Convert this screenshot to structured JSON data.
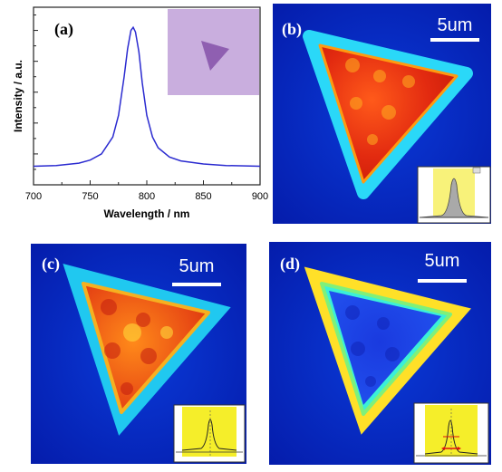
{
  "panel_labels": {
    "a": "(a)",
    "b": "(b)",
    "c": "(c)",
    "d": "(d)"
  },
  "scale_bar_label": "5um",
  "chart_data": {
    "type": "line",
    "title": "",
    "xlabel": "Wavelength / nm",
    "ylabel": "Intensity / a.u.",
    "xlim": [
      700,
      900
    ],
    "x_ticks": [
      700,
      750,
      800,
      850,
      900
    ],
    "ylim": [
      0,
      1.15
    ],
    "y_tick_labels": false,
    "grid": false,
    "legend": "none",
    "series": [
      {
        "color": "#2b2bd0",
        "x": [
          700,
          720,
          740,
          750,
          760,
          770,
          775,
          780,
          783,
          786,
          788,
          790,
          793,
          796,
          800,
          805,
          810,
          820,
          830,
          850,
          870,
          900
        ],
        "y": [
          0.12,
          0.125,
          0.14,
          0.16,
          0.2,
          0.31,
          0.45,
          0.7,
          0.88,
          1.0,
          1.02,
          0.99,
          0.86,
          0.66,
          0.45,
          0.31,
          0.24,
          0.18,
          0.155,
          0.135,
          0.125,
          0.12
        ]
      }
    ],
    "inset": "optical micrograph of triangular flake"
  }
}
